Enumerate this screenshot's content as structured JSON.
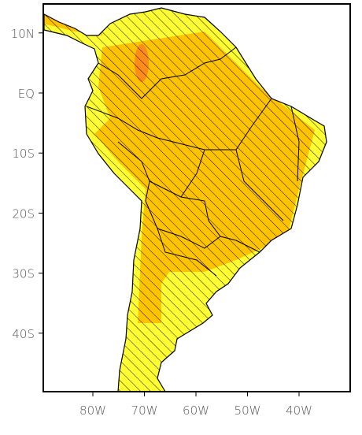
{
  "map": {
    "xticks": [
      {
        "value": -80,
        "label": "80W"
      },
      {
        "value": -70,
        "label": "70W"
      },
      {
        "value": -60,
        "label": "60W"
      },
      {
        "value": -50,
        "label": "50W"
      },
      {
        "value": -40,
        "label": "40W"
      }
    ],
    "yticks": [
      {
        "value": 10,
        "label": "10N"
      },
      {
        "value": 0,
        "label": "EQ"
      },
      {
        "value": -10,
        "label": "10S"
      },
      {
        "value": -20,
        "label": "20S"
      },
      {
        "value": -30,
        "label": "30S"
      },
      {
        "value": -40,
        "label": "40S"
      }
    ]
  }
}
